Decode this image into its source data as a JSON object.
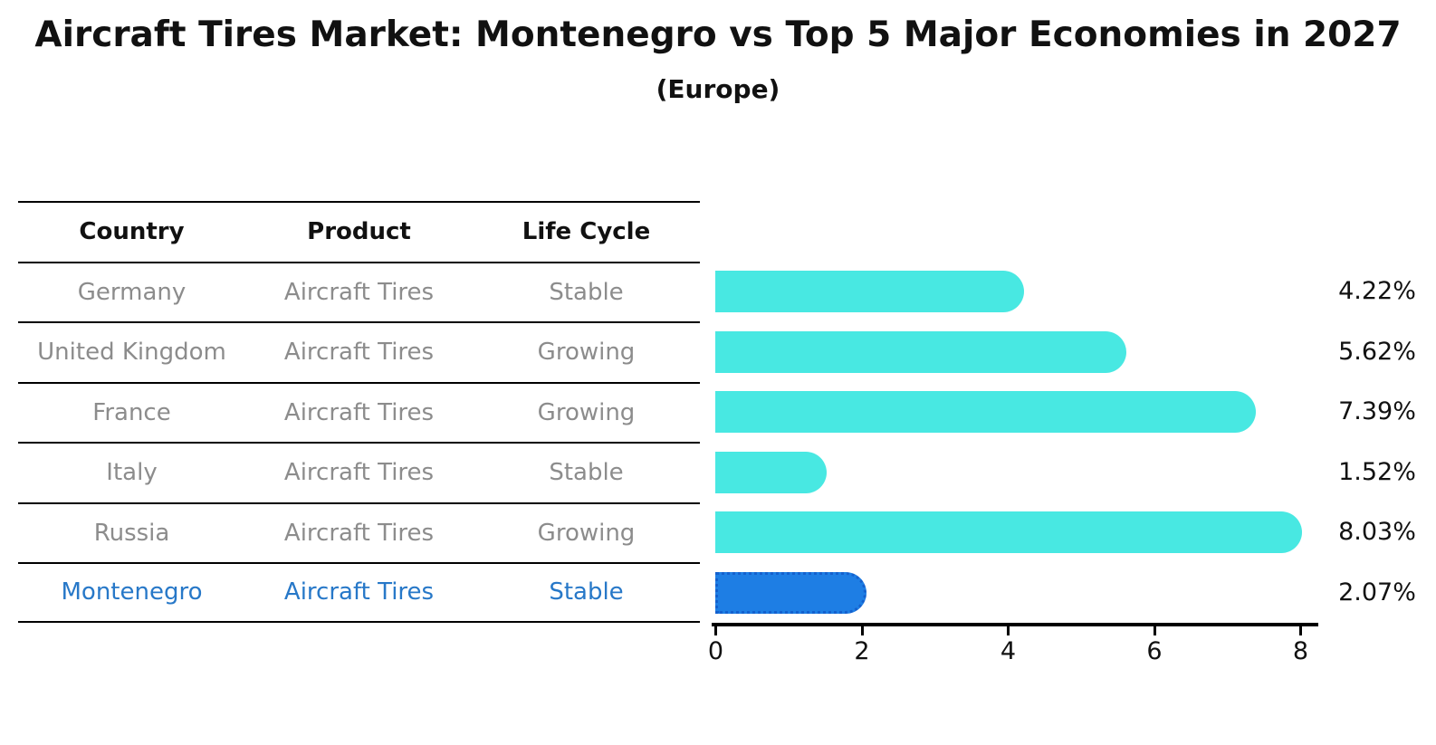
{
  "title": "Aircraft Tires Market: Montenegro vs Top 5 Major Economies in 2027",
  "subtitle": "(Europe)",
  "table": {
    "headers": [
      "Country",
      "Product",
      "Life Cycle"
    ],
    "rows": [
      {
        "country": "Germany",
        "product": "Aircraft Tires",
        "life_cycle": "Stable",
        "highlighted": false
      },
      {
        "country": "United Kingdom",
        "product": "Aircraft Tires",
        "life_cycle": "Growing",
        "highlighted": false
      },
      {
        "country": "France",
        "product": "Aircraft Tires",
        "life_cycle": "Growing",
        "highlighted": false
      },
      {
        "country": "Italy",
        "product": "Aircraft Tires",
        "life_cycle": "Stable",
        "highlighted": false
      },
      {
        "country": "Russia",
        "product": "Aircraft Tires",
        "life_cycle": "Growing",
        "highlighted": false
      },
      {
        "country": "Montenegro",
        "product": "Aircraft Tires",
        "life_cycle": "Stable",
        "highlighted": true
      }
    ]
  },
  "chart_data": {
    "type": "bar",
    "orientation": "horizontal",
    "categories": [
      "Germany",
      "United Kingdom",
      "France",
      "Italy",
      "Russia",
      "Montenegro"
    ],
    "values": [
      4.22,
      5.62,
      7.39,
      1.52,
      8.03,
      2.07
    ],
    "value_labels": [
      "4.22%",
      "5.62%",
      "7.39%",
      "1.52%",
      "8.03%",
      "2.07%"
    ],
    "unit": "%",
    "x_ticks": [
      0,
      2,
      4,
      6,
      8
    ],
    "x_tick_labels": [
      "0",
      "2",
      "4",
      "6",
      "8"
    ],
    "xlim": [
      0,
      8.3
    ],
    "grid": false,
    "legend": false,
    "highlight_index": 5,
    "bar_color": "#48E8E2",
    "highlight_bar_color": "#1E7EE4",
    "highlight_border_color": "#1461CE"
  },
  "colors": {
    "background": "#FFFFFF",
    "title_text": "#111111",
    "header_text": "#111111",
    "row_text": "#8C8C8C",
    "highlight_text": "#2778C8",
    "axis": "#000000"
  }
}
